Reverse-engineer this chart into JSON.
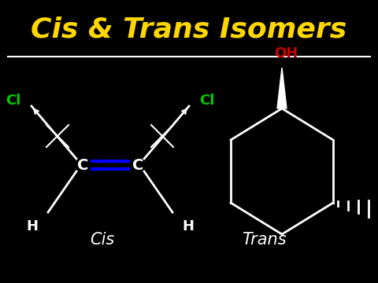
{
  "background_color": "#000000",
  "title": "Cis & Trans Isomers",
  "title_color": "#FFD700",
  "title_fontsize": 26,
  "line_color": "#FFFFFF",
  "cl_color": "#00CC00",
  "oh_color": "#CC0000",
  "double_bond_color": "#0000FF",
  "struct_color": "#FFFFFF",
  "cis_label": "Cis",
  "trans_label": "Trans",
  "label_fontsize": 15
}
